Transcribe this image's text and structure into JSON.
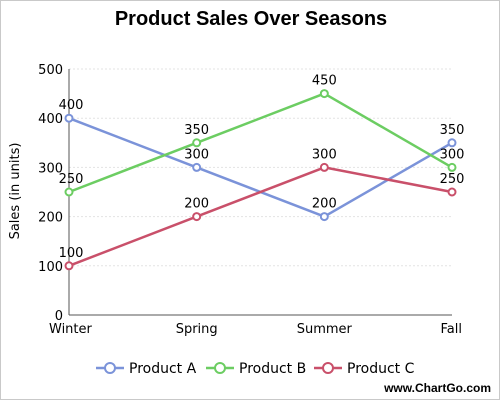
{
  "chart_data": {
    "type": "line",
    "title": "Product Sales Over Seasons",
    "xlabel": "",
    "ylabel": "Sales (in units)",
    "categories": [
      "Winter",
      "Spring",
      "Summer",
      "Fall"
    ],
    "ylim": [
      0,
      500
    ],
    "yticks": [
      0,
      100,
      200,
      300,
      400,
      500
    ],
    "grid": true,
    "legend": "bottom",
    "series": [
      {
        "name": "Product A",
        "color": "#7b93d9",
        "values": [
          400,
          300,
          200,
          350
        ]
      },
      {
        "name": "Product B",
        "color": "#6ccd62",
        "values": [
          250,
          350,
          450,
          300
        ]
      },
      {
        "name": "Product C",
        "color": "#c9506a",
        "values": [
          100,
          200,
          300,
          250
        ]
      }
    ]
  },
  "watermark": "www.ChartGo.com"
}
